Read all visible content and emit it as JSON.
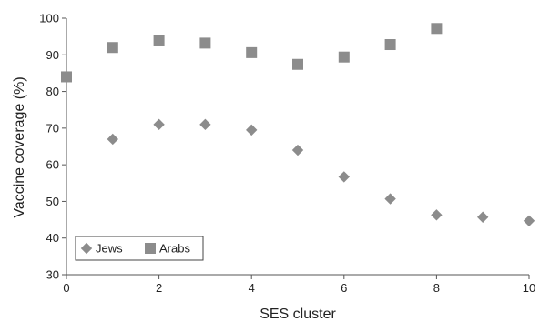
{
  "chart_data": {
    "type": "scatter",
    "xlabel": "SES cluster",
    "ylabel": "Vaccine coverage (%)",
    "xlim": [
      0,
      10
    ],
    "ylim": [
      30,
      100
    ],
    "xticks": [
      0,
      2,
      4,
      6,
      8,
      10
    ],
    "yticks": [
      30,
      40,
      50,
      60,
      70,
      80,
      90,
      100
    ],
    "grid": false,
    "legend_position": "bottom-left",
    "series": [
      {
        "name": "Jews",
        "marker": "diamond",
        "color": "#8c8c8c",
        "x": [
          1,
          2,
          3,
          4,
          5,
          6,
          7,
          8,
          9,
          10
        ],
        "y": [
          67,
          71,
          71,
          69.5,
          64,
          56.7,
          50.7,
          46.3,
          45.7,
          44.7
        ]
      },
      {
        "name": "Arabs",
        "marker": "square",
        "color": "#8c8c8c",
        "x": [
          0,
          1,
          2,
          3,
          4,
          5,
          6,
          7,
          8
        ],
        "y": [
          84,
          92,
          93.8,
          93.2,
          90.6,
          87.4,
          89.4,
          92.8,
          97.2
        ]
      }
    ]
  }
}
